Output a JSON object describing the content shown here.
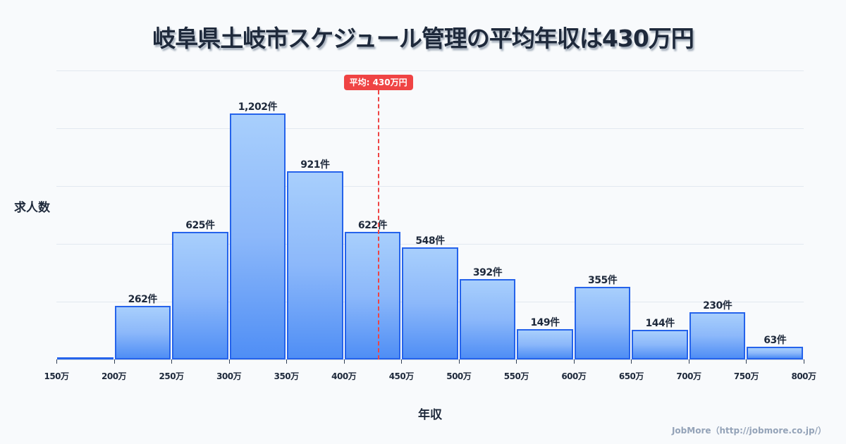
{
  "title": "岐阜県土岐市スケジュール管理の平均年収は430万円",
  "mean_badge": "平均: 430万円",
  "source": "JobMore（http://jobmore.co.jp/）",
  "colors": {
    "bar_border": "#2563eb",
    "bar_top": "#a8cffc",
    "bar_bottom": "#4f8ef5",
    "mean_line": "#ef4444",
    "text": "#1e293b",
    "grid": "#e2e8f0",
    "background": "#f8fafc"
  },
  "chart_data": {
    "type": "bar",
    "title": "岐阜県土岐市スケジュール管理の平均年収は430万円",
    "xlabel": "年収",
    "ylabel": "求人数",
    "x_ticks": [
      "150万",
      "200万",
      "250万",
      "300万",
      "350万",
      "400万",
      "450万",
      "500万",
      "550万",
      "600万",
      "650万",
      "700万",
      "750万",
      "800万"
    ],
    "categories": [
      "150-200万",
      "200-250万",
      "250-300万",
      "300-350万",
      "350-400万",
      "400-450万",
      "450-500万",
      "500-550万",
      "550-600万",
      "600-650万",
      "650-700万",
      "700-750万",
      "750-800万"
    ],
    "values": [
      10,
      262,
      625,
      1202,
      921,
      622,
      548,
      392,
      149,
      355,
      144,
      230,
      63
    ],
    "labels": [
      "",
      "262件",
      "625件",
      "1,202件",
      "921件",
      "622件",
      "548件",
      "392件",
      "149件",
      "355件",
      "144件",
      "230件",
      "63件"
    ],
    "mean": 430,
    "mean_label": "平均: 430万円",
    "xlim": [
      150,
      800
    ],
    "ylim": [
      0,
      1412
    ],
    "grid": true,
    "legend": null
  }
}
